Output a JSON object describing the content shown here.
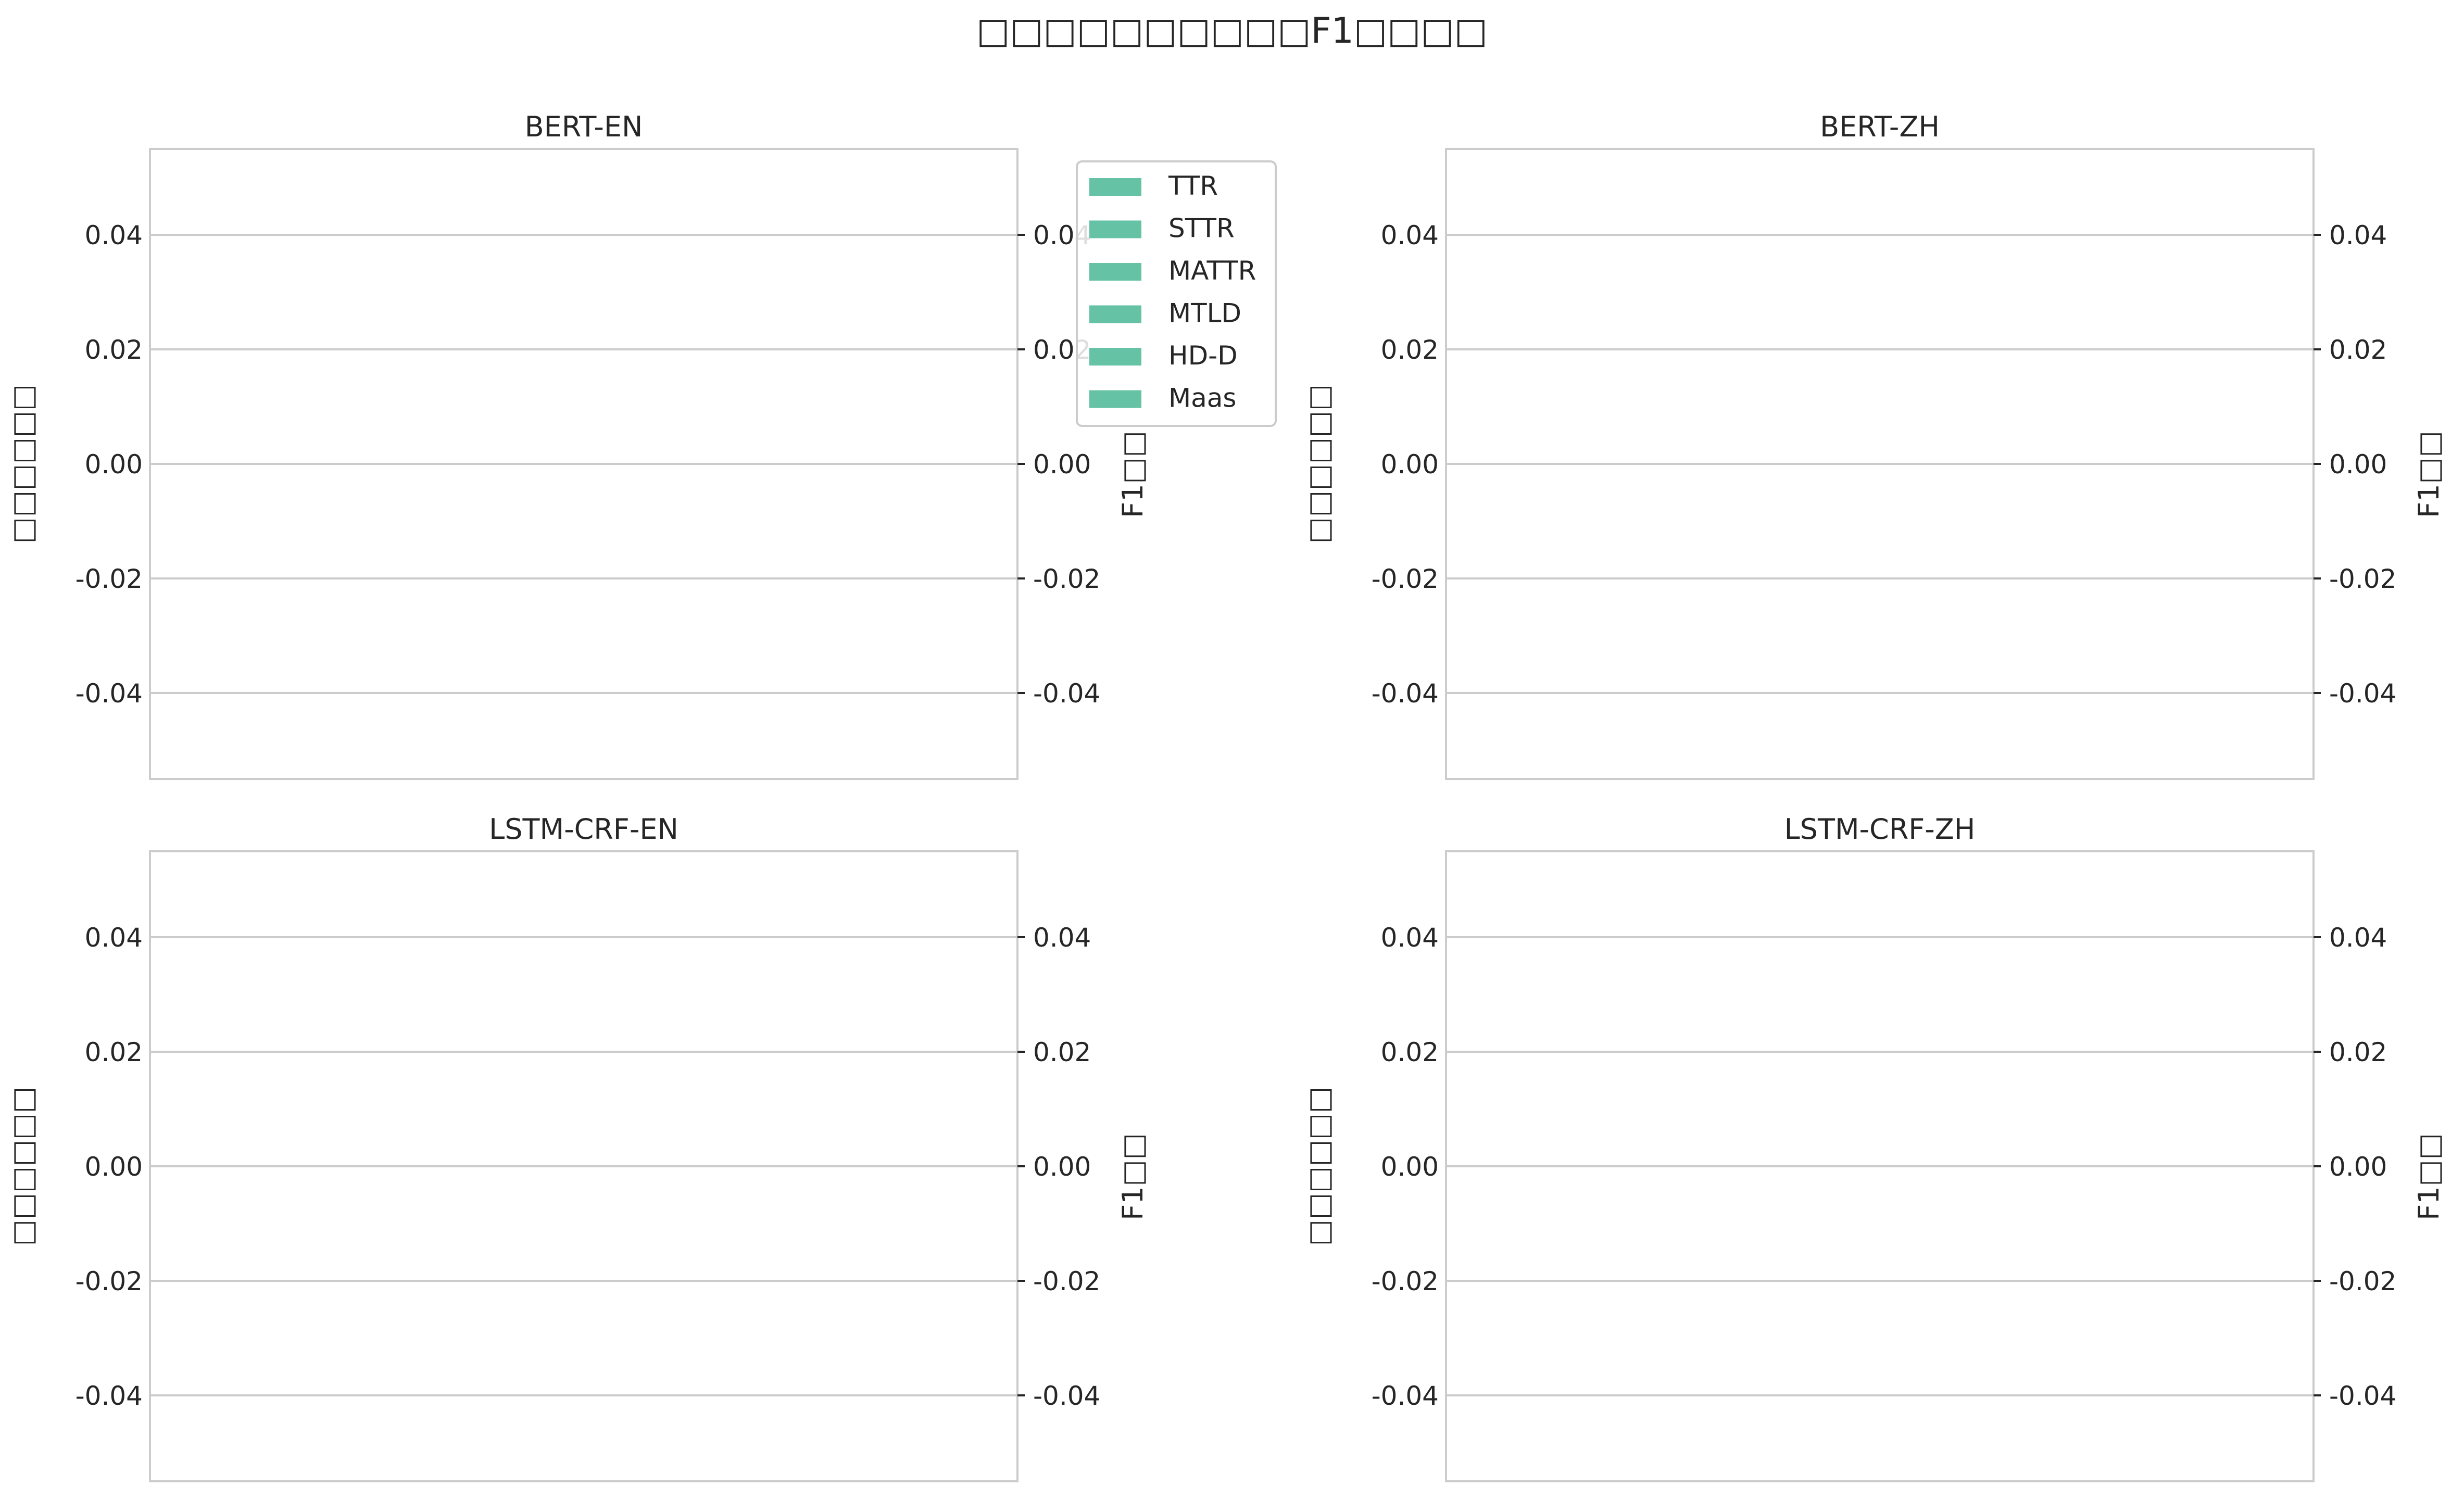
{
  "figure": {
    "title": "□□□□□□□□□□F1□□□□"
  },
  "colors": {
    "bar": "#66c2a5",
    "grid": "#cccccc",
    "frame": "#cccccc",
    "text": "#262626"
  },
  "legend": {
    "placement": "upper-right of first panel",
    "entries": [
      "TTR",
      "STTR",
      "MATTR",
      "MTLD",
      "HD-D",
      "Maas"
    ]
  },
  "chart_data": [
    {
      "type": "bar",
      "title": "BERT-EN",
      "ylabel": "□□□□□□",
      "y2label": "F1□□",
      "ylim": [
        -0.055,
        0.055
      ],
      "y2lim": [
        -0.055,
        0.055
      ],
      "yticks": [
        "0.04",
        "0.02",
        "0.00",
        "-0.02",
        "-0.04"
      ],
      "y2ticks": [
        "0.04",
        "0.02",
        "0.00",
        "-0.02",
        "-0.04"
      ],
      "grid": true,
      "series": [
        {
          "name": "TTR",
          "values": []
        },
        {
          "name": "STTR",
          "values": []
        },
        {
          "name": "MATTR",
          "values": []
        },
        {
          "name": "MTLD",
          "values": []
        },
        {
          "name": "HD-D",
          "values": []
        },
        {
          "name": "Maas",
          "values": []
        }
      ]
    },
    {
      "type": "bar",
      "title": "BERT-ZH",
      "ylabel": "□□□□□□",
      "y2label": "F1□□",
      "ylim": [
        -0.055,
        0.055
      ],
      "y2lim": [
        -0.055,
        0.055
      ],
      "yticks": [
        "0.04",
        "0.02",
        "0.00",
        "-0.02",
        "-0.04"
      ],
      "y2ticks": [
        "0.04",
        "0.02",
        "0.00",
        "-0.02",
        "-0.04"
      ],
      "grid": true,
      "series": []
    },
    {
      "type": "bar",
      "title": "LSTM-CRF-EN",
      "ylabel": "□□□□□□",
      "y2label": "F1□□",
      "ylim": [
        -0.055,
        0.055
      ],
      "y2lim": [
        -0.055,
        0.055
      ],
      "yticks": [
        "0.04",
        "0.02",
        "0.00",
        "-0.02",
        "-0.04"
      ],
      "y2ticks": [
        "0.04",
        "0.02",
        "0.00",
        "-0.02",
        "-0.04"
      ],
      "grid": true,
      "series": []
    },
    {
      "type": "bar",
      "title": "LSTM-CRF-ZH",
      "ylabel": "□□□□□□",
      "y2label": "F1□□",
      "ylim": [
        -0.055,
        0.055
      ],
      "y2lim": [
        -0.055,
        0.055
      ],
      "yticks": [
        "0.04",
        "0.02",
        "0.00",
        "-0.02",
        "-0.04"
      ],
      "y2ticks": [
        "0.04",
        "0.02",
        "0.00",
        "-0.02",
        "-0.04"
      ],
      "grid": true,
      "series": []
    }
  ]
}
